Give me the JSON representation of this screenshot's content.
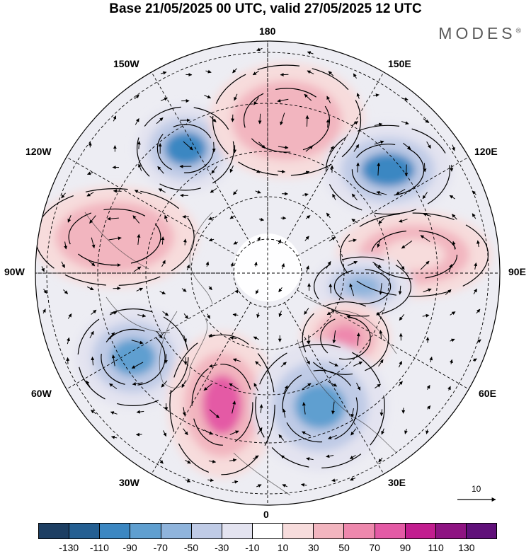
{
  "title": "Base 21/05/2025 00 UTC, valid 27/05/2025 12 UTC",
  "brand": "MODES",
  "brand_mark": "®",
  "longitude_labels": {
    "top": "180",
    "bottom": "0",
    "left": "90W",
    "right": "90E",
    "upper_left_1": "150W",
    "upper_left_2": "120W",
    "upper_right_1": "150E",
    "upper_right_2": "120E",
    "lower_left_1": "60W",
    "lower_left_2": "30W",
    "lower_right_1": "60E",
    "lower_right_2": "30E"
  },
  "reference_vector": {
    "value": "10"
  },
  "colorbar": {
    "colors": [
      "#1d3f63",
      "#245f92",
      "#3b87c2",
      "#5f9fd0",
      "#8fb4dc",
      "#bfcbe6",
      "#e3e3f0",
      "#ffffff",
      "#f7dcdc",
      "#f2b5bf",
      "#ee88ad",
      "#e45aa5",
      "#c21d8f",
      "#8e1382",
      "#60107a"
    ],
    "ticks": [
      "-130",
      "-110",
      "-90",
      "-70",
      "-50",
      "-30",
      "-10",
      "10",
      "30",
      "50",
      "70",
      "90",
      "110",
      "130"
    ]
  },
  "anomaly_centers": [
    {
      "kind": "negative",
      "level": -90,
      "near": "150W-120W"
    },
    {
      "kind": "positive",
      "level": 50,
      "near": "180-150E"
    },
    {
      "kind": "negative",
      "level": -90,
      "near": "120E"
    },
    {
      "kind": "positive",
      "level": 50,
      "near": "90W"
    },
    {
      "kind": "positive",
      "level": 30,
      "near": "90E"
    },
    {
      "kind": "negative",
      "level": -50,
      "near": "90E inner"
    },
    {
      "kind": "positive",
      "level": 70,
      "near": "60E inner"
    },
    {
      "kind": "negative",
      "level": -70,
      "near": "60W"
    },
    {
      "kind": "positive",
      "level": 90,
      "near": "30W-0"
    },
    {
      "kind": "negative",
      "level": -70,
      "near": "30E"
    }
  ]
}
